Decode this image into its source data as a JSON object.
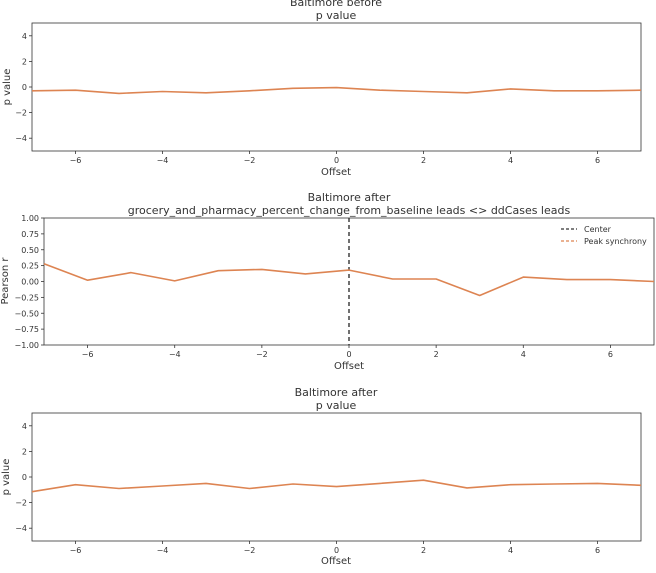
{
  "chart_data": [
    {
      "type": "line",
      "title": "Baltimore before",
      "subtitle": "p value",
      "xlabel": "Offset",
      "ylabel": "p value",
      "xlim": [
        -7,
        7
      ],
      "ylim": [
        -5,
        5
      ],
      "xticks": [
        -6,
        -4,
        -2,
        0,
        2,
        4,
        6
      ],
      "yticks": [
        -4,
        -2,
        0,
        2,
        4
      ],
      "xtick_labels": [
        "−6",
        "−4",
        "−2",
        "0",
        "2",
        "4",
        "6"
      ],
      "ytick_labels": [
        "−4",
        "−2",
        "0",
        "2",
        "4"
      ],
      "grid": false,
      "line_color": "#dd8452",
      "series": [
        {
          "x": [
            -7,
            -6,
            -5,
            -4,
            -3,
            -2,
            -1,
            0,
            1,
            2,
            3,
            4,
            5,
            6,
            7
          ],
          "values": [
            -0.3,
            -0.25,
            -0.5,
            -0.35,
            -0.45,
            -0.3,
            -0.1,
            -0.05,
            -0.25,
            -0.35,
            -0.45,
            -0.15,
            -0.3,
            -0.3,
            -0.25
          ]
        }
      ]
    },
    {
      "type": "line",
      "title": "Baltimore after",
      "subtitle": "grocery_and_pharmacy_percent_change_from_baseline leads <> ddCases leads",
      "xlabel": "Offset",
      "ylabel": "Pearson r",
      "xlim": [
        -7,
        7
      ],
      "ylim": [
        -1.0,
        1.0
      ],
      "xticks": [
        -6,
        -4,
        -2,
        0,
        2,
        4,
        6
      ],
      "yticks": [
        -1.0,
        -0.75,
        -0.5,
        -0.25,
        0.0,
        0.25,
        0.5,
        0.75,
        1.0
      ],
      "xtick_labels": [
        "−6",
        "−4",
        "−2",
        "0",
        "2",
        "4",
        "6"
      ],
      "ytick_labels": [
        "−1.00",
        "−0.75",
        "−0.50",
        "−0.25",
        "0.00",
        "0.25",
        "0.50",
        "0.75",
        "1.00"
      ],
      "grid": false,
      "line_color": "#dd8452",
      "center_line_color": "#333333",
      "center_x": 0,
      "legend": {
        "placement": "top-right",
        "entries": [
          {
            "label": "Center",
            "color": "#333333",
            "style": "dashed"
          },
          {
            "label": "Peak synchrony",
            "color": "#dd8452",
            "style": "dashed"
          }
        ]
      },
      "series": [
        {
          "x": [
            -7,
            -6,
            -5,
            -4,
            -3,
            -2,
            -1,
            0,
            1,
            2,
            3,
            4,
            5,
            6,
            7
          ],
          "values": [
            0.28,
            0.02,
            0.14,
            0.01,
            0.17,
            0.19,
            0.12,
            0.18,
            0.04,
            0.04,
            -0.22,
            0.07,
            0.03,
            0.03,
            0.0
          ]
        }
      ]
    },
    {
      "type": "line",
      "title": "Baltimore after",
      "subtitle": "p value",
      "xlabel": "Offset",
      "ylabel": "p value",
      "xlim": [
        -7,
        7
      ],
      "ylim": [
        -5,
        5
      ],
      "xticks": [
        -6,
        -4,
        -2,
        0,
        2,
        4,
        6
      ],
      "yticks": [
        -4,
        -2,
        0,
        2,
        4
      ],
      "xtick_labels": [
        "−6",
        "−4",
        "−2",
        "0",
        "2",
        "4",
        "6"
      ],
      "ytick_labels": [
        "−4",
        "−2",
        "0",
        "2",
        "4"
      ],
      "grid": false,
      "line_color": "#dd8452",
      "series": [
        {
          "x": [
            -7,
            -6,
            -5,
            -4,
            -3,
            -2,
            -1,
            0,
            1,
            2,
            3,
            4,
            5,
            6,
            7
          ],
          "values": [
            -1.15,
            -0.6,
            -0.9,
            -0.7,
            -0.5,
            -0.9,
            -0.55,
            -0.75,
            -0.5,
            -0.25,
            -0.85,
            -0.6,
            -0.55,
            -0.5,
            -0.65
          ]
        }
      ]
    }
  ]
}
